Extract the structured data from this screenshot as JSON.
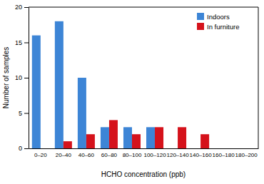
{
  "chart_data": {
    "type": "bar",
    "x_label": "HCHO concentration (ppb)",
    "y_label": "Number of samples",
    "categories": [
      "0–20",
      "20–40",
      "40–60",
      "60–80",
      "80–100",
      "100–120",
      "120–140",
      "140–160",
      "160–180",
      "180–200"
    ],
    "series": [
      {
        "name": "Indoors",
        "color": "#3d85d6",
        "values": [
          16,
          18,
          10,
          3,
          3,
          3,
          0,
          0,
          0,
          0
        ]
      },
      {
        "name": "In furniture",
        "color": "#d5121b",
        "values": [
          0,
          1,
          2,
          4,
          2,
          3,
          3,
          2,
          0,
          0
        ]
      }
    ],
    "ylim": [
      0,
      20
    ],
    "yticks": [
      0,
      5,
      10,
      15,
      20
    ],
    "grid": false,
    "legend": "upper right"
  }
}
